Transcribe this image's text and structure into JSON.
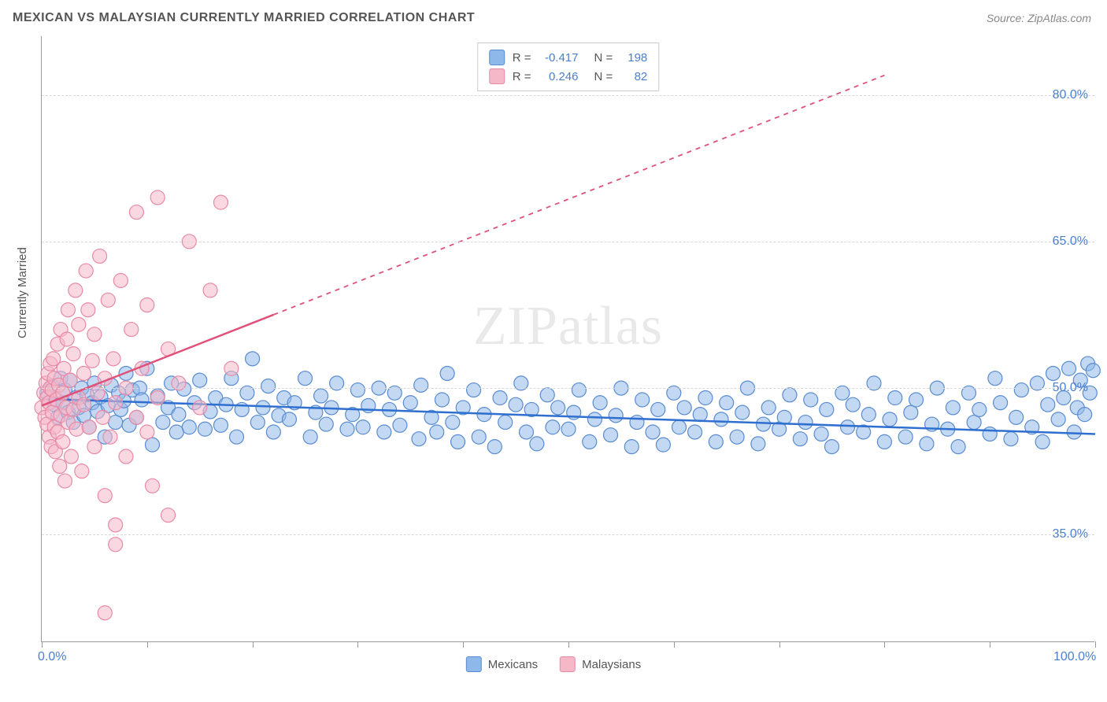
{
  "title": "MEXICAN VS MALAYSIAN CURRENTLY MARRIED CORRELATION CHART",
  "source": "Source: ZipAtlas.com",
  "ylabel": "Currently Married",
  "watermark_a": "ZIP",
  "watermark_b": "atlas",
  "chart": {
    "type": "scatter",
    "background_color": "#ffffff",
    "grid_color": "#d8d8d8",
    "axis_color": "#999999",
    "tick_label_color": "#4a7fd0",
    "xlim": [
      0,
      100
    ],
    "ylim": [
      24,
      86
    ],
    "x_ticks_major": [
      0,
      20,
      40,
      60,
      80,
      100
    ],
    "x_ticks_minor": [
      10,
      30,
      50,
      70,
      90
    ],
    "x_tick_labels": {
      "0": "0.0%",
      "100": "100.0%"
    },
    "y_ticks": [
      35,
      50,
      65,
      80
    ],
    "y_tick_labels": {
      "35": "35.0%",
      "50": "50.0%",
      "65": "65.0%",
      "80": "80.0%"
    },
    "marker_radius": 9,
    "marker_opacity": 0.55,
    "line_width": 2.5,
    "title_fontsize": 16,
    "tick_fontsize": 16,
    "label_fontsize": 15
  },
  "series": [
    {
      "name": "Mexicans",
      "color": "#8fb8ea",
      "stroke": "#5a8cd0",
      "line_color": "#2e6fd0",
      "R": "-0.417",
      "N": "198",
      "trend": {
        "x1": 0,
        "y1": 48.9,
        "x2": 100,
        "y2": 45.3
      },
      "points": [
        [
          0.5,
          49.5
        ],
        [
          1,
          50.2
        ],
        [
          1.2,
          48.3
        ],
        [
          1.5,
          47.0
        ],
        [
          1.8,
          51.0
        ],
        [
          2,
          48.5
        ],
        [
          2.2,
          49.8
        ],
        [
          2.5,
          47.5
        ],
        [
          2.7,
          50.8
        ],
        [
          3,
          46.5
        ],
        [
          3.2,
          49.0
        ],
        [
          3.5,
          48.0
        ],
        [
          3.8,
          50.0
        ],
        [
          4,
          47.2
        ],
        [
          4.3,
          49.3
        ],
        [
          4.5,
          46.0
        ],
        [
          4.8,
          48.5
        ],
        [
          5,
          50.5
        ],
        [
          5.3,
          47.6
        ],
        [
          5.6,
          49.1
        ],
        [
          6,
          45.0
        ],
        [
          6.3,
          48.2
        ],
        [
          6.6,
          50.3
        ],
        [
          7,
          46.5
        ],
        [
          7.3,
          49.5
        ],
        [
          7.5,
          47.8
        ],
        [
          7.8,
          48.7
        ],
        [
          8,
          51.5
        ],
        [
          8.3,
          46.2
        ],
        [
          8.6,
          49.8
        ],
        [
          9,
          47.0
        ],
        [
          9.3,
          50.0
        ],
        [
          9.5,
          48.8
        ],
        [
          10,
          52.0
        ],
        [
          10.5,
          44.2
        ],
        [
          11,
          49.2
        ],
        [
          11.5,
          46.5
        ],
        [
          12,
          48.0
        ],
        [
          12.3,
          50.5
        ],
        [
          12.8,
          45.5
        ],
        [
          13,
          47.3
        ],
        [
          13.5,
          49.9
        ],
        [
          14,
          46.0
        ],
        [
          14.5,
          48.5
        ],
        [
          15,
          50.8
        ],
        [
          15.5,
          45.8
        ],
        [
          16,
          47.6
        ],
        [
          16.5,
          49.0
        ],
        [
          17,
          46.2
        ],
        [
          17.5,
          48.3
        ],
        [
          18,
          51.0
        ],
        [
          18.5,
          45.0
        ],
        [
          19,
          47.8
        ],
        [
          19.5,
          49.5
        ],
        [
          20,
          53.0
        ],
        [
          20.5,
          46.5
        ],
        [
          21,
          48.0
        ],
        [
          21.5,
          50.2
        ],
        [
          22,
          45.5
        ],
        [
          22.5,
          47.2
        ],
        [
          23,
          49.0
        ],
        [
          23.5,
          46.8
        ],
        [
          24,
          48.5
        ],
        [
          25,
          51.0
        ],
        [
          25.5,
          45.0
        ],
        [
          26,
          47.5
        ],
        [
          26.5,
          49.2
        ],
        [
          27,
          46.3
        ],
        [
          27.5,
          48.0
        ],
        [
          28,
          50.5
        ],
        [
          29,
          45.8
        ],
        [
          29.5,
          47.3
        ],
        [
          30,
          49.8
        ],
        [
          30.5,
          46.0
        ],
        [
          31,
          48.2
        ],
        [
          32,
          50.0
        ],
        [
          32.5,
          45.5
        ],
        [
          33,
          47.8
        ],
        [
          33.5,
          49.5
        ],
        [
          34,
          46.2
        ],
        [
          35,
          48.5
        ],
        [
          35.8,
          44.8
        ],
        [
          36,
          50.3
        ],
        [
          37,
          47.0
        ],
        [
          37.5,
          45.5
        ],
        [
          38,
          48.8
        ],
        [
          38.5,
          51.5
        ],
        [
          39,
          46.5
        ],
        [
          39.5,
          44.5
        ],
        [
          40,
          48.0
        ],
        [
          41,
          49.8
        ],
        [
          41.5,
          45.0
        ],
        [
          42,
          47.3
        ],
        [
          43,
          44.0
        ],
        [
          43.5,
          49.0
        ],
        [
          44,
          46.5
        ],
        [
          45,
          48.3
        ],
        [
          45.5,
          50.5
        ],
        [
          46,
          45.5
        ],
        [
          46.5,
          47.8
        ],
        [
          47,
          44.3
        ],
        [
          48,
          49.3
        ],
        [
          48.5,
          46.0
        ],
        [
          49,
          48.0
        ],
        [
          50,
          45.8
        ],
        [
          50.5,
          47.5
        ],
        [
          51,
          49.8
        ],
        [
          52,
          44.5
        ],
        [
          52.5,
          46.8
        ],
        [
          53,
          48.5
        ],
        [
          54,
          45.2
        ],
        [
          54.5,
          47.2
        ],
        [
          55,
          50.0
        ],
        [
          56,
          44.0
        ],
        [
          56.5,
          46.5
        ],
        [
          57,
          48.8
        ],
        [
          58,
          45.5
        ],
        [
          58.5,
          47.8
        ],
        [
          59,
          44.2
        ],
        [
          60,
          49.5
        ],
        [
          60.5,
          46.0
        ],
        [
          61,
          48.0
        ],
        [
          62,
          45.5
        ],
        [
          62.5,
          47.3
        ],
        [
          63,
          49.0
        ],
        [
          64,
          44.5
        ],
        [
          64.5,
          46.8
        ],
        [
          65,
          48.5
        ],
        [
          66,
          45.0
        ],
        [
          66.5,
          47.5
        ],
        [
          67,
          50.0
        ],
        [
          68,
          44.3
        ],
        [
          68.5,
          46.3
        ],
        [
          69,
          48.0
        ],
        [
          70,
          45.8
        ],
        [
          70.5,
          47.0
        ],
        [
          71,
          49.3
        ],
        [
          72,
          44.8
        ],
        [
          72.5,
          46.5
        ],
        [
          73,
          48.8
        ],
        [
          74,
          45.3
        ],
        [
          74.5,
          47.8
        ],
        [
          75,
          44.0
        ],
        [
          76,
          49.5
        ],
        [
          76.5,
          46.0
        ],
        [
          77,
          48.3
        ],
        [
          78,
          45.5
        ],
        [
          78.5,
          47.3
        ],
        [
          79,
          50.5
        ],
        [
          80,
          44.5
        ],
        [
          80.5,
          46.8
        ],
        [
          81,
          49.0
        ],
        [
          82,
          45.0
        ],
        [
          82.5,
          47.5
        ],
        [
          83,
          48.8
        ],
        [
          84,
          44.3
        ],
        [
          84.5,
          46.3
        ],
        [
          85,
          50.0
        ],
        [
          86,
          45.8
        ],
        [
          86.5,
          48.0
        ],
        [
          87,
          44.0
        ],
        [
          88,
          49.5
        ],
        [
          88.5,
          46.5
        ],
        [
          89,
          47.8
        ],
        [
          90,
          45.3
        ],
        [
          90.5,
          51.0
        ],
        [
          91,
          48.5
        ],
        [
          92,
          44.8
        ],
        [
          92.5,
          47.0
        ],
        [
          93,
          49.8
        ],
        [
          94,
          46.0
        ],
        [
          94.5,
          50.5
        ],
        [
          95,
          44.5
        ],
        [
          95.5,
          48.3
        ],
        [
          96,
          51.5
        ],
        [
          96.5,
          46.8
        ],
        [
          97,
          49.0
        ],
        [
          97.5,
          52.0
        ],
        [
          98,
          45.5
        ],
        [
          98.3,
          48.0
        ],
        [
          98.6,
          50.8
        ],
        [
          99,
          47.3
        ],
        [
          99.3,
          52.5
        ],
        [
          99.5,
          49.5
        ],
        [
          99.8,
          51.8
        ]
      ]
    },
    {
      "name": "Malaysians",
      "color": "#f5b8c8",
      "stroke": "#e88aa5",
      "line_color": "#e0517a",
      "R": "0.246",
      "N": "82",
      "trend_solid": {
        "x1": 0,
        "y1": 48.2,
        "x2": 22,
        "y2": 57.5
      },
      "trend_dash": {
        "x1": 22,
        "y1": 57.5,
        "x2": 80,
        "y2": 82
      },
      "points": [
        [
          0,
          48.0
        ],
        [
          0.2,
          49.5
        ],
        [
          0.3,
          47.0
        ],
        [
          0.4,
          50.5
        ],
        [
          0.5,
          46.3
        ],
        [
          0.5,
          49.0
        ],
        [
          0.6,
          51.5
        ],
        [
          0.7,
          45.0
        ],
        [
          0.7,
          48.5
        ],
        [
          0.8,
          50.0
        ],
        [
          0.8,
          52.5
        ],
        [
          0.9,
          44.0
        ],
        [
          1,
          47.5
        ],
        [
          1,
          49.8
        ],
        [
          1.1,
          53.0
        ],
        [
          1.2,
          46.0
        ],
        [
          1.2,
          51.0
        ],
        [
          1.3,
          43.5
        ],
        [
          1.4,
          48.8
        ],
        [
          1.5,
          54.5
        ],
        [
          1.5,
          45.5
        ],
        [
          1.6,
          50.3
        ],
        [
          1.7,
          42.0
        ],
        [
          1.8,
          47.2
        ],
        [
          1.8,
          56.0
        ],
        [
          2,
          49.5
        ],
        [
          2,
          44.5
        ],
        [
          2.1,
          52.0
        ],
        [
          2.2,
          40.5
        ],
        [
          2.3,
          48.0
        ],
        [
          2.4,
          55.0
        ],
        [
          2.5,
          46.5
        ],
        [
          2.5,
          58.0
        ],
        [
          2.7,
          50.8
        ],
        [
          2.8,
          43.0
        ],
        [
          3,
          47.8
        ],
        [
          3,
          53.5
        ],
        [
          3.2,
          60.0
        ],
        [
          3.3,
          45.8
        ],
        [
          3.5,
          49.0
        ],
        [
          3.5,
          56.5
        ],
        [
          3.8,
          41.5
        ],
        [
          4,
          51.5
        ],
        [
          4,
          48.3
        ],
        [
          4.2,
          62.0
        ],
        [
          4.4,
          58.0
        ],
        [
          4.5,
          46.0
        ],
        [
          4.8,
          52.8
        ],
        [
          5,
          44.0
        ],
        [
          5,
          55.5
        ],
        [
          5.3,
          49.5
        ],
        [
          5.5,
          63.5
        ],
        [
          5.8,
          47.0
        ],
        [
          6,
          51.0
        ],
        [
          6,
          39.0
        ],
        [
          6.3,
          59.0
        ],
        [
          6.5,
          45.0
        ],
        [
          6.8,
          53.0
        ],
        [
          7,
          48.5
        ],
        [
          7,
          36.0
        ],
        [
          7.5,
          61.0
        ],
        [
          8,
          50.0
        ],
        [
          8,
          43.0
        ],
        [
          8.5,
          56.0
        ],
        [
          9,
          47.0
        ],
        [
          9,
          68.0
        ],
        [
          9.5,
          52.0
        ],
        [
          10,
          45.5
        ],
        [
          10,
          58.5
        ],
        [
          10.5,
          40.0
        ],
        [
          11,
          49.0
        ],
        [
          11,
          69.5
        ],
        [
          12,
          54.0
        ],
        [
          12,
          37.0
        ],
        [
          13,
          50.5
        ],
        [
          14,
          65.0
        ],
        [
          15,
          48.0
        ],
        [
          16,
          60.0
        ],
        [
          17,
          69.0
        ],
        [
          18,
          52.0
        ],
        [
          6,
          27.0
        ],
        [
          7,
          34.0
        ]
      ]
    }
  ],
  "legend_top": {
    "R_label": "R =",
    "N_label": "N ="
  },
  "legend_bottom_items": [
    "Mexicans",
    "Malaysians"
  ]
}
